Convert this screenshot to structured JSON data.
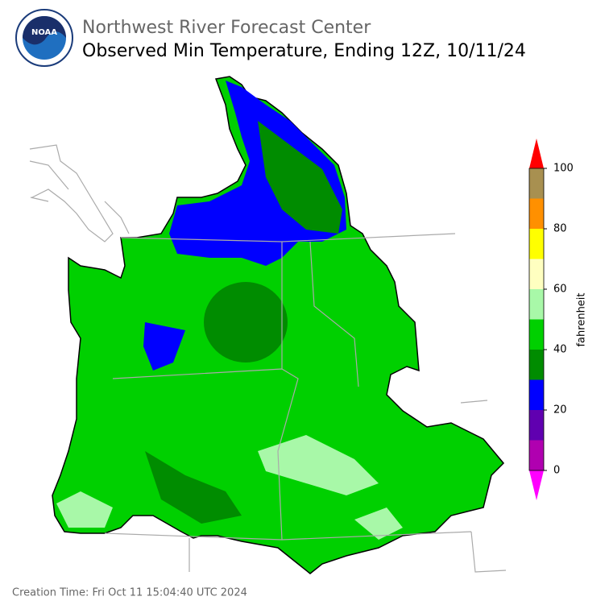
{
  "header": {
    "agency": "Northwest River Forecast Center",
    "title": "Observed Min Temperature, Ending 12Z, 10/11/24",
    "logo_text": "NOAA"
  },
  "colorbar": {
    "label": "fahrenheit",
    "lim": [
      0,
      100
    ],
    "ticks": [
      0,
      20,
      40,
      60,
      80,
      100
    ],
    "bounds": [
      0,
      10,
      20,
      30,
      40,
      50,
      60,
      70,
      80,
      90,
      100
    ],
    "colors": [
      "#b000b0",
      "#6000b0",
      "#0000ff",
      "#008c00",
      "#00d000",
      "#a8f8a8",
      "#ffffc0",
      "#ffff00",
      "#ff9000",
      "#a89050"
    ],
    "under_color": "#ff00ff",
    "over_color": "#ff0000"
  },
  "footer": {
    "creation_time": "Creation Time: Fri Oct 11 15:04:40 UTC 2024"
  }
}
